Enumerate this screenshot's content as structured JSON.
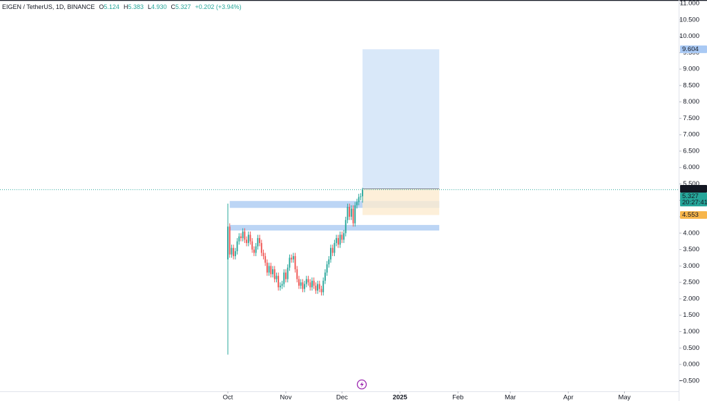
{
  "chart_data": {
    "type": "candlestick",
    "header": {
      "symbol": "EIGEN / TetherUS, 1D, BINANCE",
      "items": [
        {
          "label": "O",
          "value": "5.124"
        },
        {
          "label": "H",
          "value": "5.383"
        },
        {
          "label": "L",
          "value": "4.930"
        },
        {
          "label": "C",
          "value": "5.327"
        }
      ],
      "change": "+0.202 (+3.94%)"
    },
    "up_color": "#26a69a",
    "down_color": "#ef5350",
    "x": [
      0,
      1,
      2,
      3,
      4,
      5,
      6,
      7,
      8,
      9,
      10,
      11,
      12,
      13,
      14,
      15,
      16,
      17,
      18,
      19,
      20,
      21,
      22,
      23,
      24,
      25,
      26,
      27,
      28,
      29,
      30,
      31,
      32,
      33,
      34,
      35,
      36,
      37,
      38,
      39,
      40,
      41,
      42,
      43,
      44,
      45,
      46,
      47,
      48,
      49,
      50,
      51,
      52,
      53,
      54,
      55,
      56,
      57,
      58,
      59,
      60,
      61,
      62,
      63,
      64,
      65,
      66,
      67,
      68,
      69,
      70,
      71,
      72
    ],
    "open": [
      3.2,
      4.2,
      3.35,
      3.55,
      3.3,
      3.45,
      3.75,
      3.9,
      3.85,
      4.05,
      3.8,
      3.7,
      3.95,
      3.75,
      3.5,
      3.4,
      3.6,
      3.85,
      3.7,
      3.4,
      3.3,
      3.1,
      2.8,
      3.0,
      2.75,
      2.9,
      2.6,
      2.7,
      2.35,
      2.4,
      2.45,
      2.8,
      2.6,
      2.95,
      3.25,
      3.2,
      3.3,
      2.9,
      2.6,
      2.4,
      2.5,
      2.3,
      2.45,
      2.6,
      2.5,
      2.35,
      2.55,
      2.4,
      2.25,
      2.45,
      2.3,
      2.2,
      2.55,
      2.8,
      3.05,
      3.2,
      3.55,
      3.4,
      3.7,
      3.85,
      3.65,
      3.95,
      3.8,
      4.0,
      4.4,
      4.8,
      4.5,
      4.75,
      4.3,
      4.85,
      4.95,
      5.1,
      5.124
    ],
    "high": [
      4.9,
      4.3,
      3.65,
      3.65,
      3.55,
      3.85,
      4.0,
      4.0,
      4.15,
      4.15,
      3.9,
      4.05,
      4.05,
      3.85,
      3.6,
      3.7,
      3.95,
      3.95,
      3.8,
      3.5,
      3.4,
      3.2,
      3.1,
      3.1,
      3.0,
      3.0,
      2.8,
      2.8,
      2.5,
      2.55,
      2.9,
      2.9,
      3.05,
      3.35,
      3.35,
      3.4,
      3.4,
      3.0,
      2.7,
      2.6,
      2.6,
      2.55,
      2.7,
      2.7,
      2.6,
      2.65,
      2.65,
      2.5,
      2.55,
      2.55,
      2.4,
      2.65,
      2.9,
      3.15,
      3.3,
      3.65,
      3.65,
      3.8,
      3.95,
      3.95,
      4.05,
      4.05,
      4.1,
      4.5,
      4.9,
      4.9,
      4.85,
      4.85,
      4.95,
      5.05,
      5.2,
      5.22,
      5.383
    ],
    "low": [
      0.3,
      3.25,
      3.25,
      3.2,
      3.2,
      3.35,
      3.65,
      3.75,
      3.75,
      3.7,
      3.6,
      3.6,
      3.65,
      3.4,
      3.3,
      3.3,
      3.5,
      3.6,
      3.3,
      3.2,
      3.0,
      2.7,
      2.7,
      2.65,
      2.65,
      2.5,
      2.5,
      2.25,
      2.25,
      2.3,
      2.35,
      2.5,
      2.5,
      2.85,
      3.1,
      3.1,
      2.8,
      2.5,
      2.3,
      2.3,
      2.2,
      2.2,
      2.35,
      2.4,
      2.25,
      2.25,
      2.3,
      2.15,
      2.15,
      2.2,
      2.1,
      2.1,
      2.45,
      2.7,
      2.95,
      3.1,
      3.3,
      3.3,
      3.6,
      3.55,
      3.55,
      3.7,
      3.7,
      3.9,
      4.3,
      4.4,
      4.4,
      4.2,
      4.2,
      4.75,
      4.85,
      5.0,
      4.93
    ],
    "close": [
      4.2,
      3.35,
      3.55,
      3.3,
      3.45,
      3.75,
      3.9,
      3.85,
      4.05,
      3.8,
      3.7,
      3.95,
      3.75,
      3.5,
      3.4,
      3.6,
      3.85,
      3.7,
      3.4,
      3.3,
      3.1,
      2.8,
      3.0,
      2.75,
      2.9,
      2.6,
      2.7,
      2.35,
      2.4,
      2.45,
      2.8,
      2.6,
      2.95,
      3.25,
      3.2,
      3.3,
      2.9,
      2.6,
      2.4,
      2.5,
      2.3,
      2.45,
      2.6,
      2.5,
      2.35,
      2.55,
      2.4,
      2.25,
      2.45,
      2.3,
      2.2,
      2.55,
      2.8,
      3.05,
      3.2,
      3.55,
      3.4,
      3.7,
      3.85,
      3.65,
      3.95,
      3.8,
      4.0,
      4.4,
      4.8,
      4.5,
      4.75,
      4.3,
      4.85,
      4.95,
      5.1,
      5.124,
      5.327
    ],
    "xlim": [
      -121.8,
      241
    ],
    "xticks": [
      {
        "value": 0,
        "label": "Oct"
      },
      {
        "value": 31,
        "label": "Nov"
      },
      {
        "value": 61,
        "label": "Dec"
      },
      {
        "value": 92,
        "label": "2025"
      },
      {
        "value": 123,
        "label": "Feb"
      },
      {
        "value": 151,
        "label": "Mar"
      },
      {
        "value": 182,
        "label": "Apr"
      },
      {
        "value": 212,
        "label": "May"
      }
    ],
    "ylim": [
      -0.82,
      11.105
    ],
    "yticks": [
      {
        "value": 11,
        "label": "11.000"
      },
      {
        "value": 10.5,
        "label": "10.500"
      },
      {
        "value": 10,
        "label": "10.000"
      },
      {
        "value": 9.5,
        "label": "9.500"
      },
      {
        "value": 9,
        "label": "9.000"
      },
      {
        "value": 8.5,
        "label": "8.500"
      },
      {
        "value": 8,
        "label": "8.000"
      },
      {
        "value": 7.5,
        "label": "7.500"
      },
      {
        "value": 7,
        "label": "7.000"
      },
      {
        "value": 6.5,
        "label": "6.500"
      },
      {
        "value": 6,
        "label": "6.000"
      },
      {
        "value": 5.5,
        "label": "5.500"
      },
      {
        "value": 5,
        "label": "5.000"
      },
      {
        "value": 4.5,
        "label": "4.500"
      },
      {
        "value": 4,
        "label": "4.000"
      },
      {
        "value": 3.5,
        "label": "3.500"
      },
      {
        "value": 3,
        "label": "3.000"
      },
      {
        "value": 2.5,
        "label": "2.500"
      },
      {
        "value": 2,
        "label": "2.000"
      },
      {
        "value": 1.5,
        "label": "1.500"
      },
      {
        "value": 1,
        "label": "1.000"
      },
      {
        "value": 0.5,
        "label": "0.500"
      },
      {
        "value": 0,
        "label": "0.000"
      },
      {
        "value": -0.5,
        "label": "−0.500"
      }
    ],
    "grid": false,
    "zones": [
      {
        "color": "#bcd5f5",
        "x1": 1,
        "x2": 113,
        "y1": 4.98,
        "y2": 4.77
      },
      {
        "color": "#bcd5f5",
        "x1": 1,
        "x2": 113,
        "y1": 4.25,
        "y2": 4.08
      }
    ],
    "long_position": {
      "x1": 72,
      "x2": 113,
      "entry": 5.353,
      "target": 9.604,
      "stop": 4.553,
      "target_color": "#d5e5f8",
      "stop_color": "#fdebd0",
      "entry_color": "#8a8f99"
    },
    "price_tags": [
      {
        "value": 9.604,
        "label": "9.604",
        "color": "#a9c9f4",
        "text_color": "#131722"
      },
      {
        "value": 5.353,
        "label": "5.353",
        "color": "#131722",
        "text_color": "#ffffff"
      },
      {
        "value": 5.327,
        "label": "5.327",
        "sublabel": "20:27:41",
        "color": "#26a69a",
        "text_color": "#ffffff"
      },
      {
        "value": 4.553,
        "label": "4.553",
        "color": "#f7b64b",
        "text_color": "#131722"
      }
    ]
  }
}
